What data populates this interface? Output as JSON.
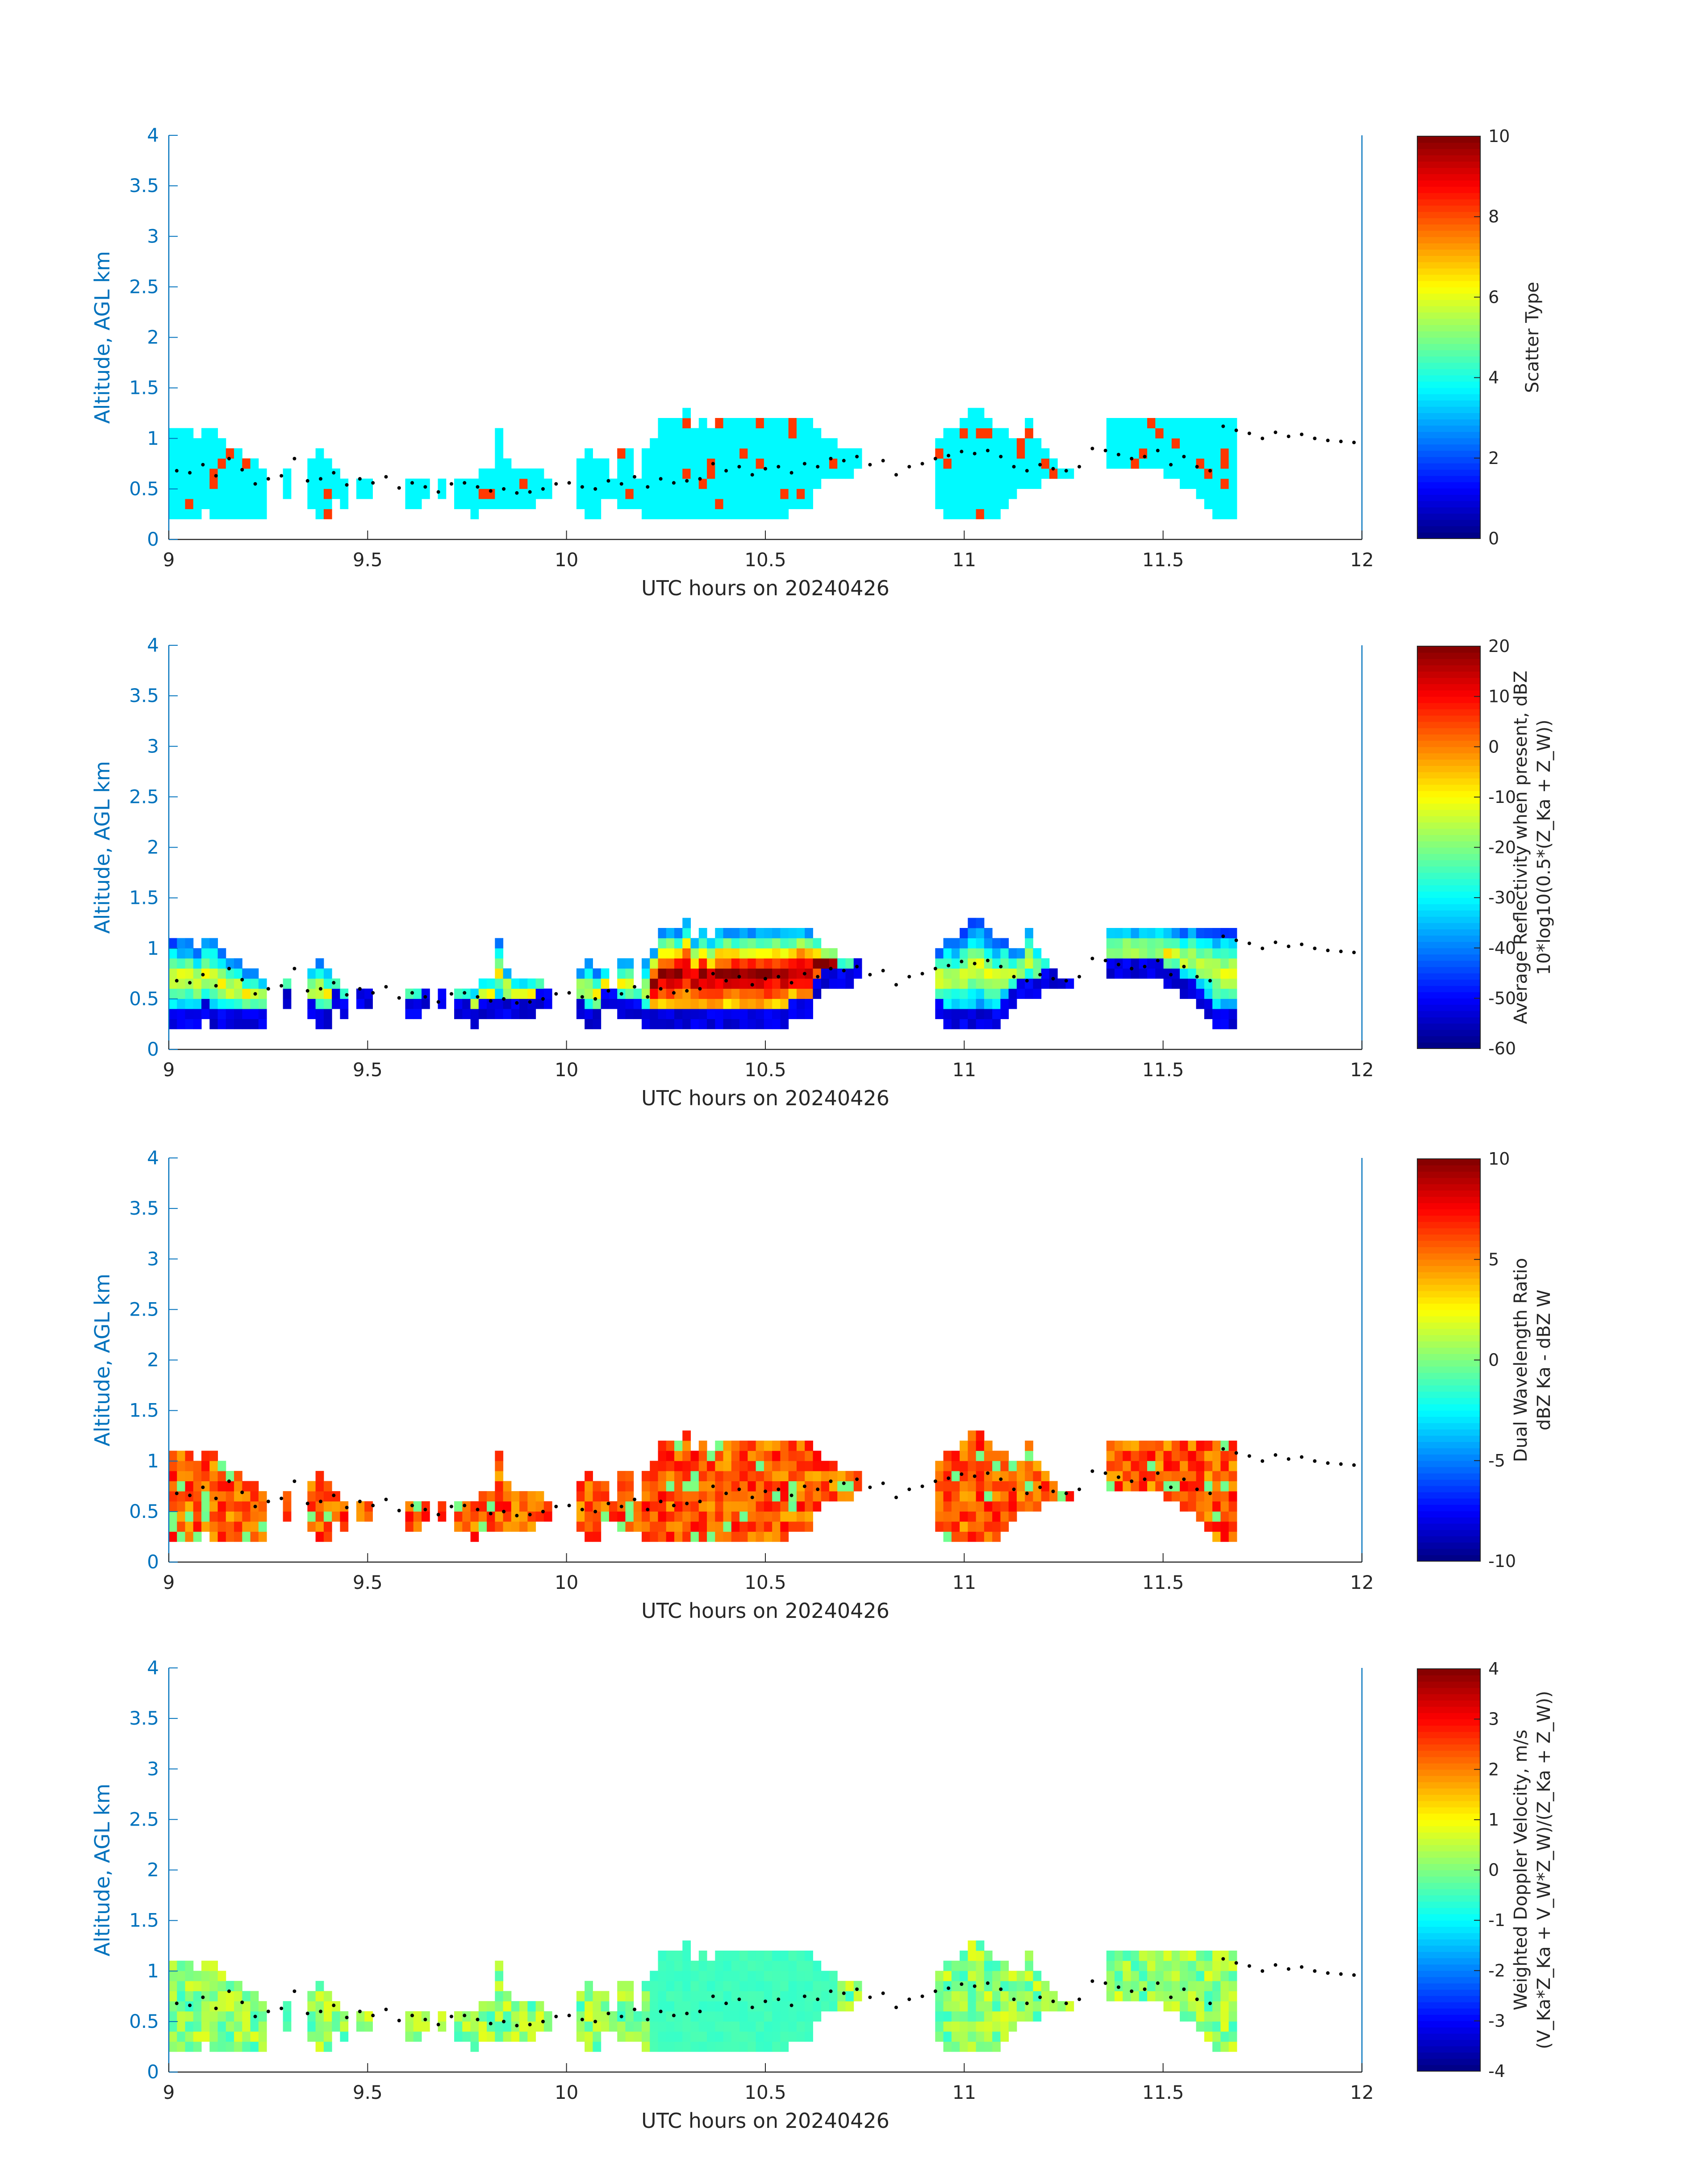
{
  "colors": {
    "axis_y": "#0072BD",
    "axis_x": "#262626",
    "colormap": "jet",
    "trace_dots": "#000000"
  },
  "chart_data": [
    {
      "type": "heatmap",
      "xlabel": "UTC hours on 20240426",
      "ylabel": "Altitude, AGL km",
      "xlim": [
        9,
        12
      ],
      "ylim": [
        0,
        4
      ],
      "xticks": [
        "9",
        "9.5",
        "10",
        "10.5",
        "11",
        "11.5",
        "12"
      ],
      "yticks": [
        "0",
        "0.5",
        "1",
        "1.5",
        "2",
        "2.5",
        "3",
        "3.5",
        "4"
      ],
      "colorbar": {
        "label_lines": [
          "Scatter Type"
        ],
        "clim": [
          0,
          10
        ],
        "ticks": [
          "0",
          "2",
          "4",
          "6",
          "8",
          "10"
        ]
      },
      "field": "scatter",
      "description_values": {
        "dominant": 3.7,
        "secondary": 8.2
      }
    },
    {
      "type": "heatmap",
      "xlabel": "UTC hours on 20240426",
      "ylabel": "Altitude, AGL km",
      "xlim": [
        9,
        12
      ],
      "ylim": [
        0,
        4
      ],
      "xticks": [
        "9",
        "9.5",
        "10",
        "10.5",
        "11",
        "11.5",
        "12"
      ],
      "yticks": [
        "0",
        "0.5",
        "1",
        "1.5",
        "2",
        "2.5",
        "3",
        "3.5",
        "4"
      ],
      "colorbar": {
        "label_lines": [
          "Average Reflectivity when present, dBZ",
          "10*log10(0.5*(Z_Ka + Z_W))"
        ],
        "clim": [
          -60,
          20
        ],
        "ticks": [
          "-60",
          "-50",
          "-40",
          "-30",
          "-20",
          "-10",
          "0",
          "10",
          "20"
        ]
      },
      "field": "reflectivity"
    },
    {
      "type": "heatmap",
      "xlabel": "UTC hours on 20240426",
      "ylabel": "Altitude, AGL km",
      "xlim": [
        9,
        12
      ],
      "ylim": [
        0,
        4
      ],
      "xticks": [
        "9",
        "9.5",
        "10",
        "10.5",
        "11",
        "11.5",
        "12"
      ],
      "yticks": [
        "0",
        "0.5",
        "1",
        "1.5",
        "2",
        "2.5",
        "3",
        "3.5",
        "4"
      ],
      "colorbar": {
        "label_lines": [
          "Dual Wavelength Ratio",
          "dBZ Ka - dBZ W"
        ],
        "clim": [
          -10,
          10
        ],
        "ticks": [
          "-10",
          "-5",
          "0",
          "5",
          "10"
        ]
      },
      "field": "dwr"
    },
    {
      "type": "heatmap",
      "xlabel": "UTC hours on 20240426",
      "ylabel": "Altitude, AGL km",
      "xlim": [
        9,
        12
      ],
      "ylim": [
        0,
        4
      ],
      "xticks": [
        "9",
        "9.5",
        "10",
        "10.5",
        "11",
        "11.5",
        "12"
      ],
      "yticks": [
        "0",
        "0.5",
        "1",
        "1.5",
        "2",
        "2.5",
        "3",
        "3.5",
        "4"
      ],
      "colorbar": {
        "label_lines": [
          "Weighted Doppler Velocity, m/s",
          "(V_Ka*Z_Ka + V_W*Z_W)/(Z_Ka + Z_W))"
        ],
        "clim": [
          -4,
          4
        ],
        "ticks": [
          "-4",
          "-3",
          "-2",
          "-1",
          "0",
          "1",
          "2",
          "3",
          "4"
        ]
      },
      "field": "velocity"
    }
  ],
  "cloud_profile": {
    "time_step_hours": 0.0205,
    "cloud_top_km": [
      1.1,
      1.1,
      1.1,
      1.0,
      1.1,
      1.1,
      1.0,
      0.9,
      0.9,
      0.8,
      0.8,
      0.7,
      0,
      0,
      0.7,
      0,
      0,
      0.8,
      0.9,
      0.8,
      0.7,
      0.6,
      0,
      0.6,
      0.6,
      0,
      0,
      0,
      0,
      0.6,
      0.6,
      0.6,
      0,
      0.6,
      0,
      0.6,
      0.6,
      0.6,
      0.7,
      0.7,
      1.1,
      0.8,
      0.7,
      0.7,
      0.7,
      0.7,
      0.6,
      0,
      0,
      0,
      0.8,
      0.9,
      0.8,
      0.8,
      0.6,
      0.9,
      0.9,
      0.6,
      0.9,
      1.0,
      1.2,
      1.2,
      1.2,
      1.3,
      1.1,
      1.2,
      1.1,
      1.2,
      1.2,
      1.2,
      1.2,
      1.2,
      1.2,
      1.2,
      1.2,
      1.2,
      1.2,
      1.2,
      1.2,
      1.1,
      1.0,
      1.0,
      0.9,
      0.9,
      0.9,
      0,
      0,
      0,
      0,
      0,
      0,
      0,
      0,
      0,
      1.0,
      1.1,
      1.1,
      1.2,
      1.3,
      1.3,
      1.2,
      1.1,
      1.1,
      1.0,
      1.0,
      1.2,
      1.0,
      0.9,
      0.8,
      0.7,
      0.7,
      0,
      0,
      0,
      0,
      1.2,
      1.2,
      1.2,
      1.2,
      1.2,
      1.2,
      1.2,
      1.2,
      1.2,
      1.2,
      1.2,
      1.2,
      1.2,
      1.2,
      1.2,
      1.2
    ],
    "cloud_base_km": [
      0.2,
      0.2,
      0.2,
      0.2,
      0.3,
      0.2,
      0.2,
      0.2,
      0.2,
      0.2,
      0.2,
      0.2,
      0,
      0,
      0.4,
      0,
      0,
      0.3,
      0.2,
      0.2,
      0.4,
      0.3,
      0,
      0.4,
      0.4,
      0,
      0,
      0,
      0,
      0.3,
      0.3,
      0.4,
      0,
      0.4,
      0,
      0.3,
      0.3,
      0.2,
      0.3,
      0.3,
      0.3,
      0.3,
      0.3,
      0.3,
      0.3,
      0.4,
      0.4,
      0,
      0,
      0,
      0.3,
      0.2,
      0.2,
      0.4,
      0.4,
      0.3,
      0.3,
      0.3,
      0.2,
      0.2,
      0.2,
      0.2,
      0.2,
      0.2,
      0.2,
      0.2,
      0.2,
      0.2,
      0.2,
      0.2,
      0.2,
      0.2,
      0.2,
      0.2,
      0.2,
      0.2,
      0.3,
      0.3,
      0.3,
      0.5,
      0.6,
      0.6,
      0.6,
      0.6,
      0.7,
      0,
      0,
      0,
      0,
      0,
      0,
      0,
      0,
      0,
      0.3,
      0.2,
      0.2,
      0.2,
      0.2,
      0.2,
      0.2,
      0.2,
      0.3,
      0.4,
      0.5,
      0.5,
      0.5,
      0.6,
      0.6,
      0.6,
      0.6,
      0,
      0,
      0,
      0,
      0.7,
      0.7,
      0.7,
      0.7,
      0.7,
      0.7,
      0.7,
      0.6,
      0.6,
      0.5,
      0.5,
      0.4,
      0.3,
      0.2,
      0.2,
      0.2
    ]
  },
  "trace_dots_km": [
    0.68,
    0.66,
    0.74,
    0.63,
    0.8,
    0.69,
    0.55,
    0.6,
    0.63,
    0.8,
    0.58,
    0.6,
    0.66,
    0.54,
    0.6,
    0.56,
    0.62,
    0.51,
    0.56,
    0.52,
    0.47,
    0.55,
    0.56,
    0.52,
    0.48,
    0.5,
    0.46,
    0.47,
    0.5,
    0.55,
    0.56,
    0.52,
    0.5,
    0.58,
    0.55,
    0.62,
    0.52,
    0.6,
    0.56,
    0.58,
    0.6,
    0.75,
    0.68,
    0.72,
    0.64,
    0.7,
    0.72,
    0.66,
    0.75,
    0.72,
    0.8,
    0.78,
    0.82,
    0.74,
    0.78,
    0.64,
    0.72,
    0.75,
    0.8,
    0.83,
    0.87,
    0.85,
    0.88,
    0.82,
    0.72,
    0.68,
    0.74,
    0.7,
    0.68,
    0.72,
    0.9,
    0.88,
    0.84,
    0.8,
    0.82,
    0.88,
    0.74,
    0.82,
    0.72,
    0.68,
    1.12,
    1.08,
    1.05,
    1.0,
    1.06,
    1.02,
    1.04,
    1.0,
    0.98,
    0.97,
    0.96
  ]
}
